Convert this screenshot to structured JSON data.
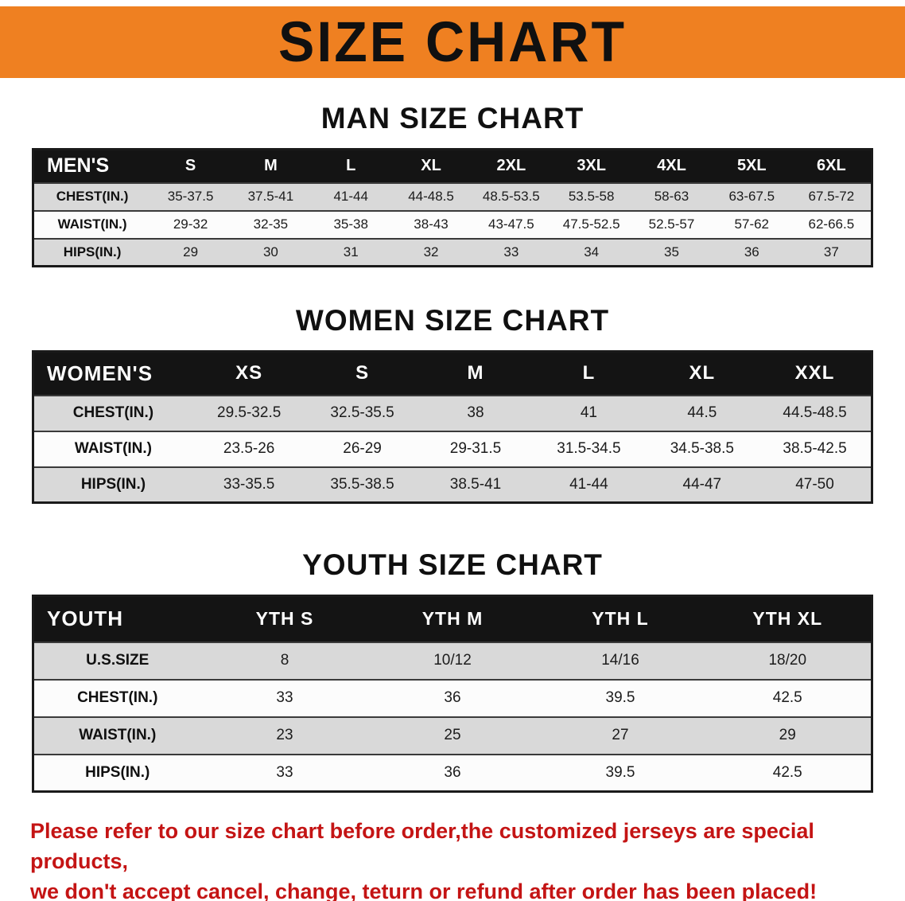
{
  "banner": {
    "title": "SIZE CHART"
  },
  "colors": {
    "banner_bg": "#ef8021",
    "table_header_bg": "#141414",
    "row_stripe": "#d9d9d9",
    "notice_text": "#c41414"
  },
  "sections": [
    {
      "heading": "MAN SIZE CHART",
      "table": {
        "header": [
          "MEN'S",
          "S",
          "M",
          "L",
          "XL",
          "2XL",
          "3XL",
          "4XL",
          "5XL",
          "6XL"
        ],
        "rows": [
          [
            "CHEST(IN.)",
            "35-37.5",
            "37.5-41",
            "41-44",
            "44-48.5",
            "48.5-53.5",
            "53.5-58",
            "58-63",
            "63-67.5",
            "67.5-72"
          ],
          [
            "WAIST(IN.)",
            "29-32",
            "32-35",
            "35-38",
            "38-43",
            "43-47.5",
            "47.5-52.5",
            "52.5-57",
            "57-62",
            "62-66.5"
          ],
          [
            "HIPS(IN.)",
            "29",
            "30",
            "31",
            "32",
            "33",
            "34",
            "35",
            "36",
            "37"
          ]
        ]
      }
    },
    {
      "heading": "WOMEN SIZE CHART",
      "table": {
        "header": [
          "WOMEN'S",
          "XS",
          "S",
          "M",
          "L",
          "XL",
          "XXL"
        ],
        "rows": [
          [
            "CHEST(IN.)",
            "29.5-32.5",
            "32.5-35.5",
            "38",
            "41",
            "44.5",
            "44.5-48.5"
          ],
          [
            "WAIST(IN.)",
            "23.5-26",
            "26-29",
            "29-31.5",
            "31.5-34.5",
            "34.5-38.5",
            "38.5-42.5"
          ],
          [
            "HIPS(IN.)",
            "33-35.5",
            "35.5-38.5",
            "38.5-41",
            "41-44",
            "44-47",
            "47-50"
          ]
        ]
      }
    },
    {
      "heading": "YOUTH SIZE CHART",
      "table": {
        "header": [
          "YOUTH",
          "YTH S",
          "YTH M",
          "YTH L",
          "YTH XL"
        ],
        "rows": [
          [
            "U.S.SIZE",
            "8",
            "10/12",
            "14/16",
            "18/20"
          ],
          [
            "CHEST(IN.)",
            "33",
            "36",
            "39.5",
            "42.5"
          ],
          [
            "WAIST(IN.)",
            "23",
            "25",
            "27",
            "29"
          ],
          [
            "HIPS(IN.)",
            "33",
            "36",
            "39.5",
            "42.5"
          ]
        ]
      }
    }
  ],
  "footer": {
    "lines": [
      "Please refer to our size chart before order,the customized jerseys are special products,",
      "we don't accept cancel, change, teturn or refund after order has been placed!"
    ]
  }
}
